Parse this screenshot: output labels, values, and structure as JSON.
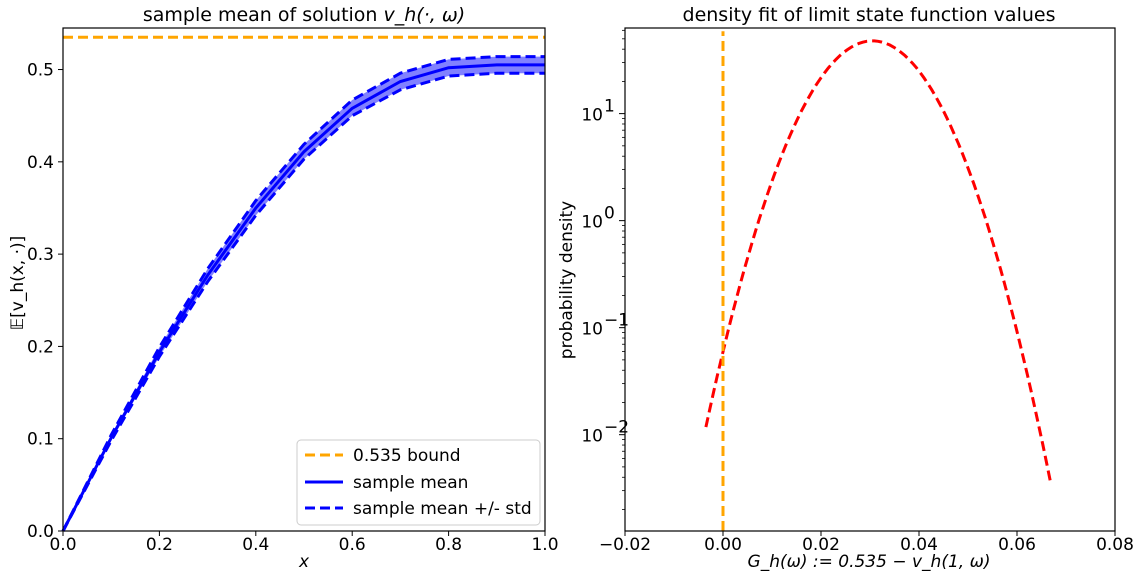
{
  "colors": {
    "bound": "#ffa500",
    "mean": "#0000ff",
    "band": "#6b6bff",
    "density": "#ff0000"
  },
  "chart_data": [
    {
      "type": "line",
      "title_prefix": "sample mean of solution ",
      "title_math": "v_h(·, ω)",
      "xlabel": "x",
      "ylabel": "𝔼[v_h(x, ·)]",
      "xlim": [
        0.0,
        1.0
      ],
      "ylim": [
        0.0,
        0.545
      ],
      "xticks": [
        "0.0",
        "0.2",
        "0.4",
        "0.6",
        "0.8",
        "1.0"
      ],
      "yticks": [
        "0.0",
        "0.1",
        "0.2",
        "0.3",
        "0.4",
        "0.5"
      ],
      "grid": false,
      "legend_position": "lower-right",
      "legend": [
        "0.535 bound",
        "sample mean",
        "sample mean +/- std"
      ],
      "bound": 0.535,
      "x": [
        0.0,
        0.1,
        0.2,
        0.3,
        0.4,
        0.5,
        0.6,
        0.7,
        0.8,
        0.9,
        1.0
      ],
      "series": [
        {
          "name": "sample mean",
          "values": [
            0.0,
            0.101,
            0.194,
            0.277,
            0.35,
            0.411,
            0.458,
            0.487,
            0.502,
            0.505,
            0.505
          ]
        },
        {
          "name": "sample mean +/- std",
          "values_upper": [
            0.0,
            0.104,
            0.199,
            0.284,
            0.358,
            0.419,
            0.467,
            0.496,
            0.511,
            0.514,
            0.514
          ],
          "values_lower": [
            0.0,
            0.098,
            0.189,
            0.27,
            0.342,
            0.403,
            0.45,
            0.478,
            0.493,
            0.496,
            0.496
          ]
        }
      ]
    },
    {
      "type": "line",
      "title": "density fit of limit state function values",
      "xlabel": "G_h(ω) := 0.535 − v_h(1, ω)",
      "ylabel": "probability density",
      "xlim": [
        -0.02,
        0.08
      ],
      "ylim_log10": [
        -2.9,
        1.8
      ],
      "yscale": "log",
      "xticks": [
        "−0.02",
        "0.00",
        "0.02",
        "0.04",
        "0.06",
        "0.08"
      ],
      "yticks": [
        {
          "base": "10",
          "exp": "−2",
          "value": 0.01
        },
        {
          "base": "10",
          "exp": "−1",
          "value": 0.1
        },
        {
          "base": "10",
          "exp": "0",
          "value": 1
        },
        {
          "base": "10",
          "exp": "1",
          "value": 10
        }
      ],
      "grid": false,
      "vline": {
        "x": 0.0,
        "ymin_log10": -2.9,
        "ymax_log10": 1.77
      },
      "density": {
        "mean": 0.0305,
        "std": 0.00834,
        "xmin": -0.0035,
        "xmax": 0.0668
      }
    }
  ]
}
